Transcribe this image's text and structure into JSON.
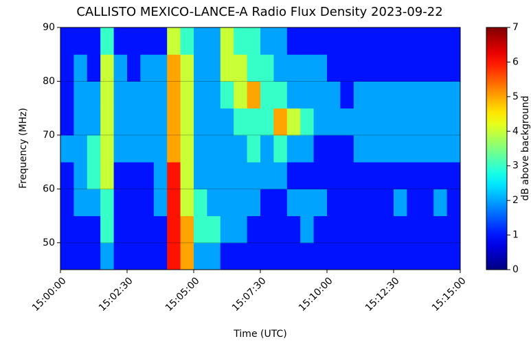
{
  "chart_data": {
    "type": "heatmap",
    "title": "CALLISTO MEXICO-LANCE-A Radio Flux Density 2023-09-22",
    "x_label": "Time (UTC)",
    "y_label": "Frequency (MHz)",
    "colorbar_label": "dB above background",
    "cmap": "jet",
    "grid": true,
    "xlim": [
      0,
      15
    ],
    "xticks": [
      {
        "value": 0,
        "label": "15:00:00"
      },
      {
        "value": 2.5,
        "label": "15:02:30"
      },
      {
        "value": 5,
        "label": "15:05:00"
      },
      {
        "value": 7.5,
        "label": "15:07:30"
      },
      {
        "value": 10,
        "label": "15:10:00"
      },
      {
        "value": 12.5,
        "label": "15:12:30"
      },
      {
        "value": 15,
        "label": "15:15:00"
      }
    ],
    "ylim": [
      45,
      90
    ],
    "yticks": [
      50,
      60,
      70,
      80,
      90
    ],
    "zlim": [
      0,
      7
    ],
    "zticks": [
      0,
      1,
      2,
      3,
      4,
      5,
      6,
      7
    ],
    "x_bins": [
      0,
      0.5,
      1,
      1.5,
      2,
      2.5,
      3,
      3.5,
      4,
      4.5,
      5,
      5.5,
      6,
      6.5,
      7,
      7.5,
      8,
      8.5,
      9,
      9.5,
      10,
      10.5,
      11,
      11.5,
      12,
      12.5,
      13,
      13.5,
      14,
      14.5,
      15
    ],
    "y_bins": [
      45,
      50,
      55,
      60,
      65,
      70,
      75,
      80,
      85,
      90
    ],
    "z": [
      [
        1,
        1,
        1,
        2,
        1,
        1,
        1,
        1,
        6,
        5,
        2,
        2,
        1,
        1,
        1,
        1,
        1,
        1,
        1,
        1,
        1,
        1,
        1,
        1,
        1,
        1,
        1,
        1,
        1,
        1
      ],
      [
        1,
        1,
        1,
        3,
        1,
        1,
        1,
        1,
        6,
        5,
        3,
        3,
        2,
        2,
        1,
        1,
        1,
        1,
        2,
        1,
        1,
        1,
        1,
        1,
        1,
        1,
        1,
        1,
        1,
        1
      ],
      [
        1,
        2,
        2,
        3,
        1,
        1,
        1,
        2,
        6,
        4,
        3,
        2,
        2,
        2,
        2,
        1,
        1,
        2,
        2,
        2,
        1,
        1,
        1,
        1,
        1,
        2,
        1,
        1,
        2,
        1
      ],
      [
        1,
        2,
        3,
        4,
        1,
        1,
        1,
        2,
        6,
        4,
        2,
        2,
        2,
        2,
        2,
        2,
        2,
        1,
        1,
        1,
        1,
        1,
        1,
        1,
        1,
        1,
        1,
        1,
        1,
        1
      ],
      [
        2,
        2,
        3,
        4,
        2,
        2,
        2,
        2,
        5,
        4,
        2,
        2,
        2,
        2,
        3,
        2,
        3,
        2,
        2,
        1,
        1,
        1,
        2,
        2,
        2,
        2,
        2,
        2,
        2,
        2
      ],
      [
        1,
        2,
        2,
        4,
        2,
        2,
        2,
        2,
        5,
        4,
        2,
        2,
        2,
        3,
        3,
        3,
        5,
        4,
        3,
        2,
        2,
        2,
        2,
        2,
        2,
        2,
        2,
        2,
        2,
        2
      ],
      [
        1,
        2,
        2,
        4,
        2,
        2,
        2,
        2,
        5,
        4,
        2,
        2,
        3,
        4,
        5,
        3,
        3,
        2,
        2,
        2,
        2,
        1,
        2,
        2,
        2,
        2,
        2,
        2,
        2,
        2
      ],
      [
        1,
        2,
        1,
        4,
        2,
        1,
        2,
        2,
        5,
        4,
        2,
        2,
        4,
        4,
        3,
        3,
        2,
        2,
        2,
        2,
        1,
        1,
        1,
        1,
        1,
        1,
        1,
        1,
        1,
        1
      ],
      [
        1,
        1,
        1,
        3,
        1,
        1,
        1,
        1,
        4,
        3,
        2,
        2,
        4,
        3,
        3,
        2,
        2,
        1,
        1,
        1,
        1,
        1,
        1,
        1,
        1,
        1,
        1,
        1,
        1,
        1
      ]
    ]
  }
}
